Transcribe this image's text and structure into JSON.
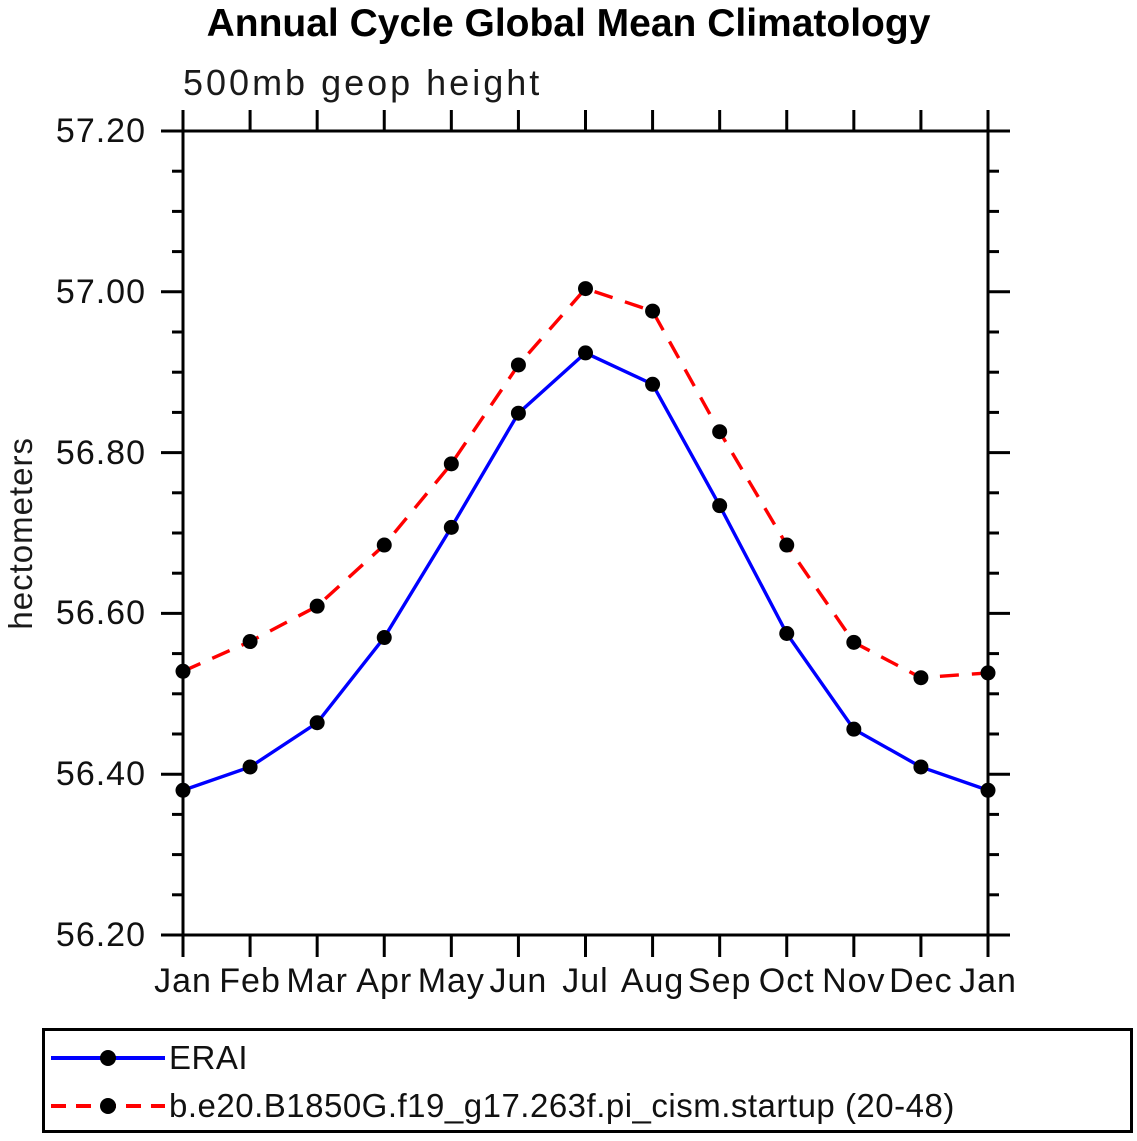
{
  "title": "Annual Cycle Global Mean Climatology",
  "subtitle": "500mb geop height",
  "ylabel": "hectometers",
  "colors": {
    "background": "#ffffff",
    "axis": "#000000",
    "marker": "#000000",
    "erai_line": "#0000ff",
    "model_line": "#ff0000"
  },
  "chart_data": {
    "type": "line",
    "title": "Annual Cycle Global Mean Climatology",
    "subtitle": "500mb geop height",
    "xlabel": "",
    "ylabel": "hectometers",
    "x_categories": [
      "Jan",
      "Feb",
      "Mar",
      "Apr",
      "May",
      "Jun",
      "Jul",
      "Aug",
      "Sep",
      "Oct",
      "Nov",
      "Dec",
      "Jan"
    ],
    "ylim": [
      56.2,
      57.2
    ],
    "ytick_labels": [
      "56.20",
      "56.40",
      "56.60",
      "56.80",
      "57.00",
      "57.20"
    ],
    "ytick_step_major": 0.2,
    "ytick_step_minor": 0.05,
    "grid": false,
    "legend_position": "bottom",
    "series": [
      {
        "name": "ERAI",
        "color": "#0000ff",
        "line_style": "solid",
        "marker": "filled-circle",
        "marker_color": "#000000",
        "values": [
          56.38,
          56.409,
          56.464,
          56.57,
          56.707,
          56.849,
          56.924,
          56.885,
          56.734,
          56.575,
          56.456,
          56.409,
          56.38
        ]
      },
      {
        "name": "b.e20.B1850G.f19_g17.263f.pi_cism.startup (20-48)",
        "color": "#ff0000",
        "line_style": "dashed",
        "marker": "filled-circle",
        "marker_color": "#000000",
        "values": [
          56.528,
          56.565,
          56.609,
          56.685,
          56.786,
          56.909,
          57.004,
          56.976,
          56.826,
          56.685,
          56.564,
          56.52,
          56.526
        ]
      }
    ]
  }
}
